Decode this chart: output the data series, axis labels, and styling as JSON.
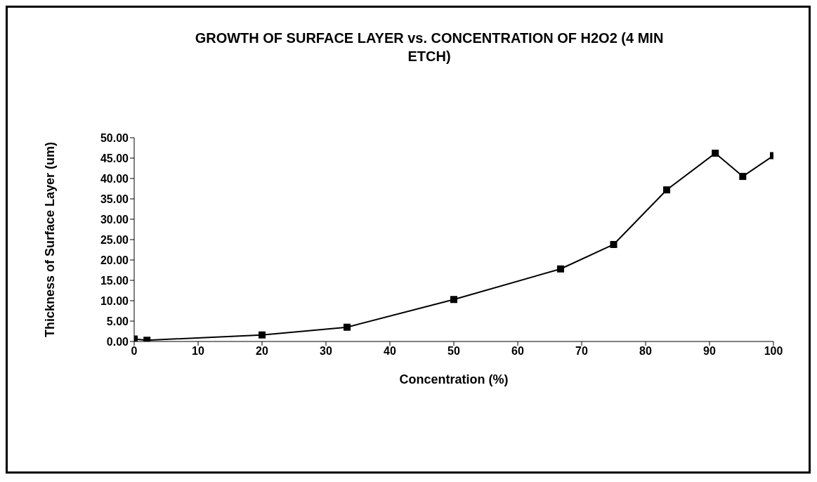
{
  "chart_data": {
    "type": "line",
    "title": "GROWTH OF SURFACE LAYER vs. CONCENTRATION OF H2O2 (4 MIN ETCH)",
    "xlabel": "Concentration (%)",
    "ylabel": "Thickness of Surface Layer (um)",
    "x": [
      0,
      2,
      20,
      33.3,
      50,
      66.7,
      75,
      83.3,
      90.9,
      95.2,
      100
    ],
    "series": [
      {
        "color": "#000000",
        "values": [
          0.6,
          0.3,
          1.6,
          3.5,
          10.3,
          17.8,
          23.8,
          37.2,
          46.2,
          40.5,
          45.6
        ]
      }
    ],
    "xlim": [
      0,
      100
    ],
    "xticks": [
      0,
      10,
      20,
      30,
      40,
      50,
      60,
      70,
      80,
      90,
      100
    ],
    "ylim": [
      0,
      50
    ],
    "yticks": [
      {
        "value": 0,
        "label": "0.00"
      },
      {
        "value": 5,
        "label": "5.00"
      },
      {
        "value": 10,
        "label": "10.00"
      },
      {
        "value": 15,
        "label": "15.00"
      },
      {
        "value": 20,
        "label": "20.00"
      },
      {
        "value": 25,
        "label": "25.00"
      },
      {
        "value": 30,
        "label": "30.00"
      },
      {
        "value": 35,
        "label": "35.00"
      },
      {
        "value": 40,
        "label": "40.00"
      },
      {
        "value": 45,
        "label": "45.00"
      },
      {
        "value": 50,
        "label": "50.00"
      }
    ],
    "grid": false,
    "legend": false,
    "marker": "square",
    "line_style": "solid"
  }
}
